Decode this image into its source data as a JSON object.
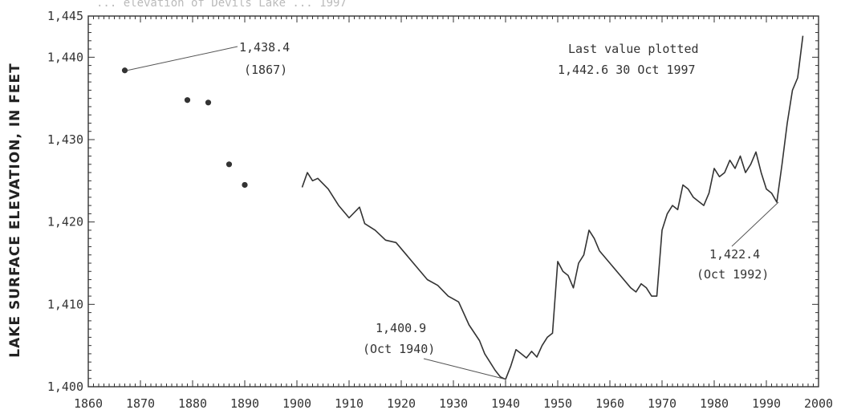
{
  "chart_data": {
    "type": "line",
    "title_fragment": "... elevation of Devils Lake ... 1997",
    "ylabel": "LAKE SURFACE ELEVATION, IN FEET",
    "xlabel": "",
    "xlim": [
      1860,
      2000
    ],
    "ylim": [
      1400,
      1445
    ],
    "x_ticks": [
      "1860",
      "1870",
      "1880",
      "1890",
      "1900",
      "1910",
      "1920",
      "1930",
      "1940",
      "1950",
      "1960",
      "1970",
      "1980",
      "1990",
      "2000"
    ],
    "y_ticks": [
      "1,400",
      "1,410",
      "1,420",
      "1,430",
      "1,440",
      "1,445"
    ],
    "grid": false,
    "early_points": [
      {
        "x": 1867,
        "y": 1438.4
      },
      {
        "x": 1879,
        "y": 1434.8
      },
      {
        "x": 1883,
        "y": 1434.5
      },
      {
        "x": 1887,
        "y": 1427.0
      },
      {
        "x": 1890,
        "y": 1424.5
      }
    ],
    "series": [
      {
        "x": [
          1901,
          1902,
          1903,
          1904,
          1906,
          1908,
          1910,
          1912,
          1913,
          1915,
          1917,
          1919,
          1921,
          1923,
          1925,
          1927,
          1929,
          1931,
          1933,
          1935,
          1936,
          1937,
          1938,
          1939,
          1940,
          1941,
          1942,
          1943,
          1944,
          1945,
          1946,
          1947,
          1948,
          1949,
          1950,
          1951,
          1952,
          1953,
          1954,
          1955,
          1956,
          1957,
          1958,
          1960,
          1962,
          1964,
          1965,
          1966,
          1967,
          1968,
          1969,
          1970,
          1971,
          1972,
          1973,
          1974,
          1975,
          1976,
          1977,
          1978,
          1979,
          1980,
          1981,
          1982,
          1983,
          1984,
          1985,
          1986,
          1987,
          1988,
          1989,
          1990,
          1991,
          1992,
          1993,
          1994,
          1995,
          1996,
          1997
        ],
        "y": [
          1424.2,
          1426.0,
          1425.0,
          1425.3,
          1424.0,
          1422.0,
          1420.5,
          1421.8,
          1419.8,
          1419.0,
          1417.8,
          1417.5,
          1416.0,
          1414.5,
          1413.0,
          1412.3,
          1411.0,
          1410.3,
          1407.5,
          1405.6,
          1404.0,
          1403.0,
          1402.0,
          1401.2,
          1400.9,
          1402.5,
          1404.5,
          1404.0,
          1403.5,
          1404.3,
          1403.6,
          1405.0,
          1406.0,
          1406.5,
          1415.2,
          1414.0,
          1413.5,
          1412.0,
          1415.0,
          1416.0,
          1419.0,
          1418.0,
          1416.5,
          1415.0,
          1413.5,
          1412.0,
          1411.5,
          1412.5,
          1412.0,
          1411.0,
          1411.0,
          1419.0,
          1421.0,
          1422.0,
          1421.5,
          1424.5,
          1424.0,
          1423.0,
          1422.5,
          1422.0,
          1423.5,
          1426.5,
          1425.5,
          1426.0,
          1427.5,
          1426.5,
          1428.0,
          1426.0,
          1427.0,
          1428.5,
          1426.0,
          1424.0,
          1423.5,
          1422.4,
          1427.0,
          1432.0,
          1436.0,
          1437.5,
          1442.6
        ]
      }
    ],
    "annotations": [
      {
        "line1": "1,438.4",
        "line2": "(1867)"
      },
      {
        "line1": "Last value plotted",
        "line2": "1,442.6   30 Oct 1997"
      },
      {
        "line1": "1,400.9",
        "line2": "(Oct 1940)"
      },
      {
        "line1": "1,422.4",
        "line2": "(Oct 1992)"
      }
    ]
  }
}
